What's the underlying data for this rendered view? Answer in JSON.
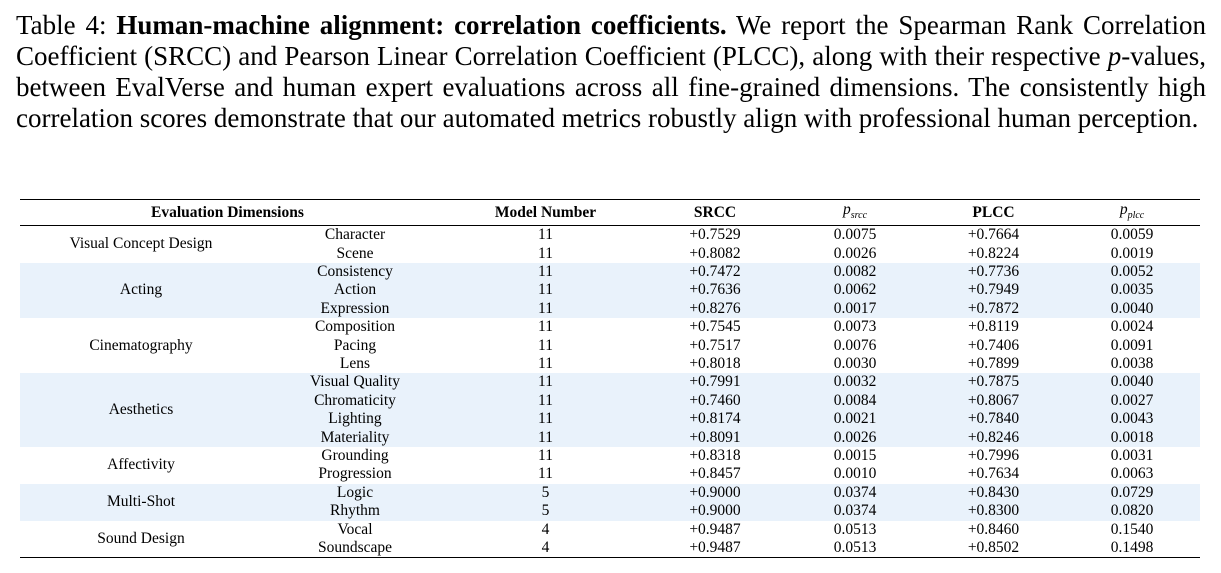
{
  "caption": {
    "label": "Table 4:",
    "title": "Human-machine alignment: correlation coefficients.",
    "text_before_p": "We report the Spearman Rank Correlation Coefficient (SRCC) and Pearson Linear Correlation Coefficient (PLCC), along with their respective",
    "p_symbol": "p",
    "text_after_p": "-values, between EvalVerse and human expert evaluations across all fine-grained dimensions. The consistently high correlation scores demonstrate that our automated metrics robustly align with professional human perception."
  },
  "table": {
    "headers": {
      "dimensions": "Evaluation Dimensions",
      "model_number": "Model Number",
      "srcc": "SRCC",
      "p_srcc_base": "p",
      "p_srcc_sub": "srcc",
      "plcc": "PLCC",
      "p_plcc_base": "p",
      "p_plcc_sub": "plcc"
    },
    "groups": [
      {
        "name": "Visual Concept Design",
        "rows": [
          {
            "sub": "Character",
            "n": "11",
            "srcc": "+0.7529",
            "p_srcc": "0.0075",
            "plcc": "+0.7664",
            "p_plcc": "0.0059"
          },
          {
            "sub": "Scene",
            "n": "11",
            "srcc": "+0.8082",
            "p_srcc": "0.0026",
            "plcc": "+0.8224",
            "p_plcc": "0.0019"
          }
        ]
      },
      {
        "name": "Acting",
        "rows": [
          {
            "sub": "Consistency",
            "n": "11",
            "srcc": "+0.7472",
            "p_srcc": "0.0082",
            "plcc": "+0.7736",
            "p_plcc": "0.0052"
          },
          {
            "sub": "Action",
            "n": "11",
            "srcc": "+0.7636",
            "p_srcc": "0.0062",
            "plcc": "+0.7949",
            "p_plcc": "0.0035"
          },
          {
            "sub": "Expression",
            "n": "11",
            "srcc": "+0.8276",
            "p_srcc": "0.0017",
            "plcc": "+0.7872",
            "p_plcc": "0.0040"
          }
        ]
      },
      {
        "name": "Cinematography",
        "rows": [
          {
            "sub": "Composition",
            "n": "11",
            "srcc": "+0.7545",
            "p_srcc": "0.0073",
            "plcc": "+0.8119",
            "p_plcc": "0.0024"
          },
          {
            "sub": "Pacing",
            "n": "11",
            "srcc": "+0.7517",
            "p_srcc": "0.0076",
            "plcc": "+0.7406",
            "p_plcc": "0.0091"
          },
          {
            "sub": "Lens",
            "n": "11",
            "srcc": "+0.8018",
            "p_srcc": "0.0030",
            "plcc": "+0.7899",
            "p_plcc": "0.0038"
          }
        ]
      },
      {
        "name": "Aesthetics",
        "rows": [
          {
            "sub": "Visual Quality",
            "n": "11",
            "srcc": "+0.7991",
            "p_srcc": "0.0032",
            "plcc": "+0.7875",
            "p_plcc": "0.0040"
          },
          {
            "sub": "Chromaticity",
            "n": "11",
            "srcc": "+0.7460",
            "p_srcc": "0.0084",
            "plcc": "+0.8067",
            "p_plcc": "0.0027"
          },
          {
            "sub": "Lighting",
            "n": "11",
            "srcc": "+0.8174",
            "p_srcc": "0.0021",
            "plcc": "+0.7840",
            "p_plcc": "0.0043"
          },
          {
            "sub": "Materiality",
            "n": "11",
            "srcc": "+0.8091",
            "p_srcc": "0.0026",
            "plcc": "+0.8246",
            "p_plcc": "0.0018"
          }
        ]
      },
      {
        "name": "Affectivity",
        "rows": [
          {
            "sub": "Grounding",
            "n": "11",
            "srcc": "+0.8318",
            "p_srcc": "0.0015",
            "plcc": "+0.7996",
            "p_plcc": "0.0031"
          },
          {
            "sub": "Progression",
            "n": "11",
            "srcc": "+0.8457",
            "p_srcc": "0.0010",
            "plcc": "+0.7634",
            "p_plcc": "0.0063"
          }
        ]
      },
      {
        "name": "Multi-Shot",
        "rows": [
          {
            "sub": "Logic",
            "n": "5",
            "srcc": "+0.9000",
            "p_srcc": "0.0374",
            "plcc": "+0.8430",
            "p_plcc": "0.0729"
          },
          {
            "sub": "Rhythm",
            "n": "5",
            "srcc": "+0.9000",
            "p_srcc": "0.0374",
            "plcc": "+0.8300",
            "p_plcc": "0.0820"
          }
        ]
      },
      {
        "name": "Sound Design",
        "rows": [
          {
            "sub": "Vocal",
            "n": "4",
            "srcc": "+0.9487",
            "p_srcc": "0.0513",
            "plcc": "+0.8460",
            "p_plcc": "0.1540"
          },
          {
            "sub": "Soundscape",
            "n": "4",
            "srcc": "+0.9487",
            "p_srcc": "0.0513",
            "plcc": "+0.8502",
            "p_plcc": "0.1498"
          }
        ]
      }
    ],
    "shade_color": "#e9f2fb"
  }
}
